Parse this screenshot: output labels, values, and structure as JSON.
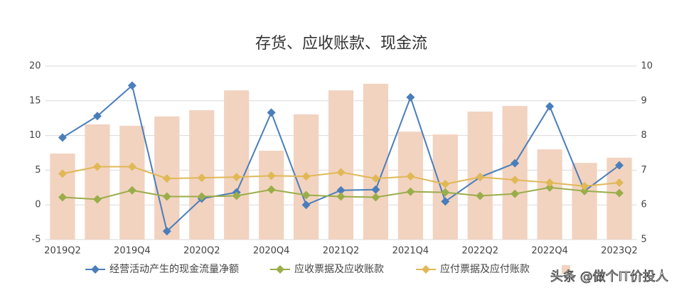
{
  "chart_data": {
    "type": "combo",
    "title": "存货、应收账款、现金流",
    "categories": [
      "2019Q2",
      null,
      "2019Q4",
      null,
      "2020Q2",
      null,
      "2020Q4",
      null,
      "2021Q2",
      null,
      "2021Q4",
      null,
      "2022Q2",
      null,
      "2022Q4",
      null,
      "2023Q2"
    ],
    "ylim": [
      -5,
      20
    ],
    "yticks": [
      -5,
      0,
      5,
      10,
      15,
      20
    ],
    "y2lim": [
      5,
      10
    ],
    "y2ticks": [
      5,
      6,
      7,
      8,
      9,
      10
    ],
    "grid": true,
    "legend": "bottom",
    "series": [
      {
        "type": "bar",
        "axis": "y2",
        "color": "#f2d3c0",
        "values": [
          7.48,
          8.32,
          8.28,
          8.55,
          8.73,
          9.3,
          7.56,
          8.61,
          9.3,
          9.49,
          8.11,
          8.03,
          8.69,
          8.85,
          7.6,
          7.21,
          7.36
        ]
      },
      {
        "type": "line",
        "name": "经营活动产生的现金流量净额",
        "color": "#4a7ebb",
        "values": [
          9.7,
          12.8,
          17.2,
          -3.8,
          0.9,
          1.8,
          13.3,
          0,
          2.1,
          2.2,
          15.5,
          0.5,
          4.0,
          6.0,
          14.2,
          2.0,
          5.7
        ]
      },
      {
        "type": "line",
        "name": "应收票据及应收账款",
        "color": "#9aad4a",
        "values": [
          1.1,
          0.8,
          2.1,
          1.2,
          1.2,
          1.3,
          2.2,
          1.4,
          1.2,
          1.1,
          1.9,
          1.8,
          1.3,
          1.6,
          2.5,
          2.0,
          1.7
        ]
      },
      {
        "type": "line",
        "name": "应付票据及应付账款",
        "color": "#e0b856",
        "values": [
          4.5,
          5.5,
          5.5,
          3.8,
          3.9,
          4.0,
          4.2,
          4.1,
          4.7,
          3.8,
          4.1,
          3.0,
          4.0,
          3.6,
          3.2,
          2.7,
          3.2
        ]
      }
    ],
    "watermark": "头条 @做个IT价投人"
  }
}
